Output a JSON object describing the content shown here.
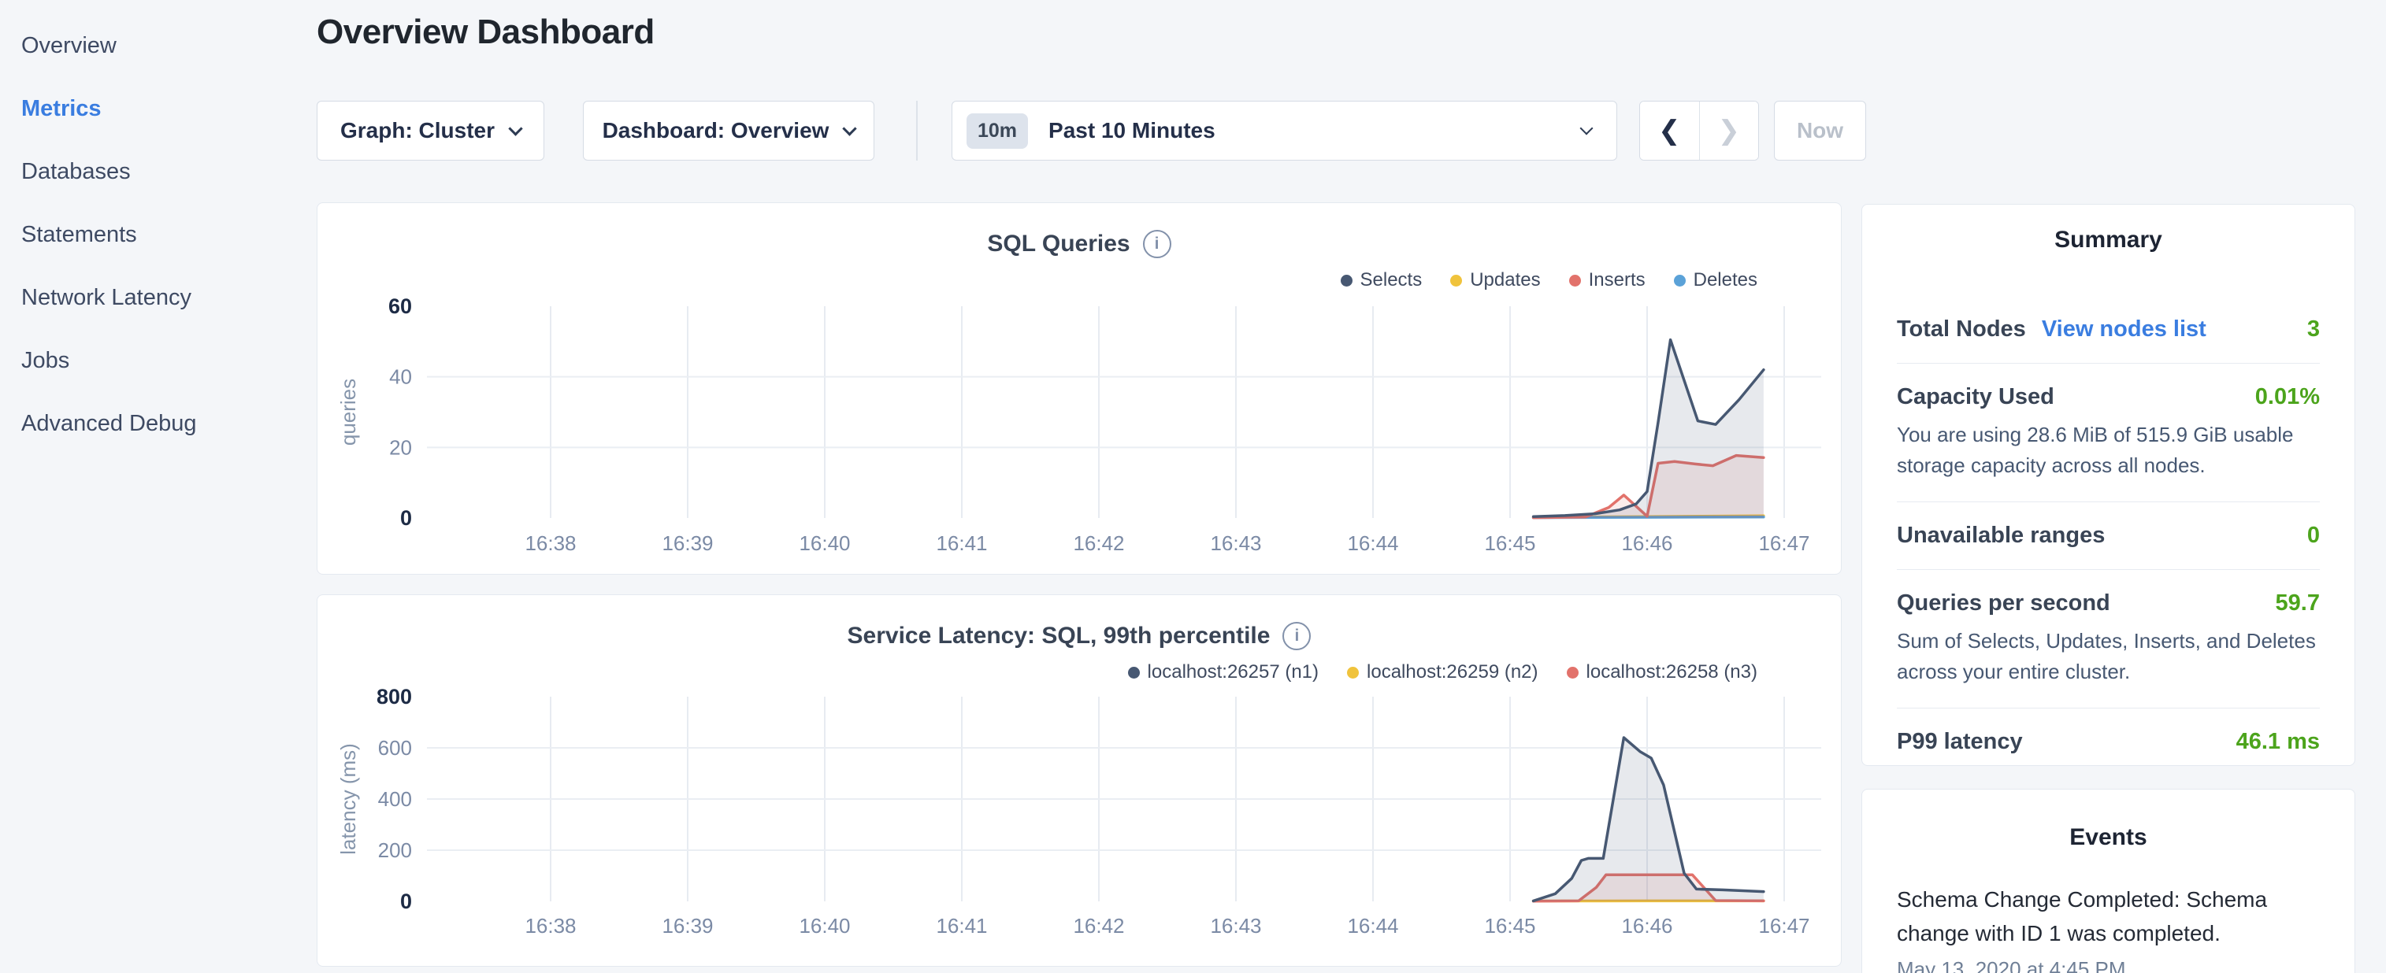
{
  "colors": {
    "page_bg": "#f4f6f9",
    "accent_blue": "#3a7de0",
    "value_green": "#4ca41c",
    "text_dark": "#242a35",
    "text_slate": "#394455",
    "text_muted": "#7b8aa5",
    "card_border": "#e4e9f0",
    "series_navy": "#475872",
    "series_yellow": "#f0c33c",
    "series_red": "#e2726b",
    "series_blue": "#5ba2d8"
  },
  "icons": {
    "info": "i",
    "chevron_left": "❮",
    "chevron_right": "❯"
  },
  "sidebar": {
    "items": [
      {
        "label": "Overview",
        "active": false
      },
      {
        "label": "Metrics",
        "active": true
      },
      {
        "label": "Databases",
        "active": false
      },
      {
        "label": "Statements",
        "active": false
      },
      {
        "label": "Network Latency",
        "active": false
      },
      {
        "label": "Jobs",
        "active": false
      },
      {
        "label": "Advanced Debug",
        "active": false
      }
    ]
  },
  "header": {
    "title": "Overview Dashboard"
  },
  "controls": {
    "graph_dropdown": "Graph: Cluster",
    "dashboard_dropdown": "Dashboard: Overview",
    "time_window_badge": "10m",
    "time_window_label": "Past 10 Minutes",
    "now_label": "Now"
  },
  "summary": {
    "heading": "Summary",
    "rows": [
      {
        "label": "Total Nodes",
        "link": "View nodes list",
        "value": "3"
      },
      {
        "label": "Capacity Used",
        "value": "0.01%",
        "subtext": "You are using 28.6 MiB of 515.9 GiB usable storage capacity across all nodes."
      },
      {
        "label": "Unavailable ranges",
        "value": "0"
      },
      {
        "label": "Queries per second",
        "value": "59.7",
        "subtext": "Sum of Selects, Updates, Inserts, and Deletes across your entire cluster."
      },
      {
        "label": "P99 latency",
        "value": "46.1 ms"
      }
    ]
  },
  "events": {
    "heading": "Events",
    "items": [
      {
        "text": "Schema Change Completed: Schema change with ID 1 was completed.",
        "timestamp": "May 13, 2020 at 4:45 PM"
      }
    ]
  },
  "chart_data": [
    {
      "type": "area",
      "title": "SQL Queries",
      "ylabel": "queries",
      "xlabel": "",
      "x_note": "x = minutes after 16:37",
      "x_ticks": [
        "16:38",
        "16:39",
        "16:40",
        "16:41",
        "16:42",
        "16:43",
        "16:44",
        "16:45",
        "16:46",
        "16:47"
      ],
      "y_ticks": [
        0,
        20,
        40,
        60
      ],
      "ylim": [
        0,
        60
      ],
      "grid": true,
      "legend_position": "top-right",
      "series": [
        {
          "name": "Updates",
          "color": "#f0c33c",
          "points": [
            [
              8.17,
              0.2
            ],
            [
              8.6,
              0.3
            ],
            [
              9.0,
              0.4
            ],
            [
              9.4,
              0.5
            ],
            [
              9.85,
              0.6
            ]
          ]
        },
        {
          "name": "Deletes",
          "color": "#5ba2d8",
          "points": [
            [
              8.17,
              0.1
            ],
            [
              9.0,
              0.2
            ],
            [
              9.85,
              0.3
            ]
          ]
        },
        {
          "name": "Inserts",
          "color": "#e2726b",
          "points": [
            [
              8.17,
              0.1
            ],
            [
              8.55,
              0.3
            ],
            [
              8.72,
              3
            ],
            [
              8.83,
              6.5
            ],
            [
              9.0,
              0.5
            ],
            [
              9.08,
              15.5
            ],
            [
              9.2,
              16
            ],
            [
              9.35,
              15.3
            ],
            [
              9.48,
              14.8
            ],
            [
              9.65,
              17.7
            ],
            [
              9.85,
              17.1
            ]
          ]
        },
        {
          "name": "Selects",
          "color": "#475872",
          "points": [
            [
              8.17,
              0.4
            ],
            [
              8.4,
              0.7
            ],
            [
              8.62,
              1.2
            ],
            [
              8.8,
              2.3
            ],
            [
              8.92,
              4
            ],
            [
              9.0,
              7.5
            ],
            [
              9.08,
              27
            ],
            [
              9.17,
              50.5
            ],
            [
              9.27,
              39
            ],
            [
              9.37,
              27.5
            ],
            [
              9.5,
              26.5
            ],
            [
              9.67,
              33.5
            ],
            [
              9.85,
              42
            ]
          ]
        }
      ],
      "legend_order": [
        "Selects",
        "Updates",
        "Inserts",
        "Deletes"
      ]
    },
    {
      "type": "area",
      "title": "Service Latency: SQL, 99th percentile",
      "ylabel": "latency (ms)",
      "xlabel": "",
      "x_note": "x = minutes after 16:37",
      "x_ticks": [
        "16:38",
        "16:39",
        "16:40",
        "16:41",
        "16:42",
        "16:43",
        "16:44",
        "16:45",
        "16:46",
        "16:47"
      ],
      "y_ticks": [
        0,
        200,
        400,
        600,
        800
      ],
      "ylim": [
        0,
        800
      ],
      "grid": true,
      "legend_position": "top-right",
      "series": [
        {
          "name": "localhost:26259 (n2)",
          "color": "#f0c33c",
          "points": [
            [
              8.17,
              1.5
            ],
            [
              9.0,
              2
            ],
            [
              9.85,
              2
            ]
          ]
        },
        {
          "name": "localhost:26258 (n3)",
          "color": "#e2726b",
          "points": [
            [
              8.17,
              1
            ],
            [
              8.5,
              2
            ],
            [
              8.63,
              55
            ],
            [
              8.7,
              104
            ],
            [
              9.33,
              104
            ],
            [
              9.5,
              3
            ],
            [
              9.85,
              2
            ]
          ]
        },
        {
          "name": "localhost:26257 (n1)",
          "color": "#475872",
          "points": [
            [
              8.17,
              2
            ],
            [
              8.33,
              30
            ],
            [
              8.45,
              90
            ],
            [
              8.52,
              160
            ],
            [
              8.57,
              168
            ],
            [
              8.68,
              168
            ],
            [
              8.83,
              640
            ],
            [
              8.95,
              585
            ],
            [
              9.03,
              560
            ],
            [
              9.12,
              455
            ],
            [
              9.27,
              110
            ],
            [
              9.36,
              48
            ],
            [
              9.55,
              45
            ],
            [
              9.85,
              38
            ]
          ]
        }
      ],
      "legend_order": [
        "localhost:26257 (n1)",
        "localhost:26259 (n2)",
        "localhost:26258 (n3)"
      ]
    }
  ]
}
